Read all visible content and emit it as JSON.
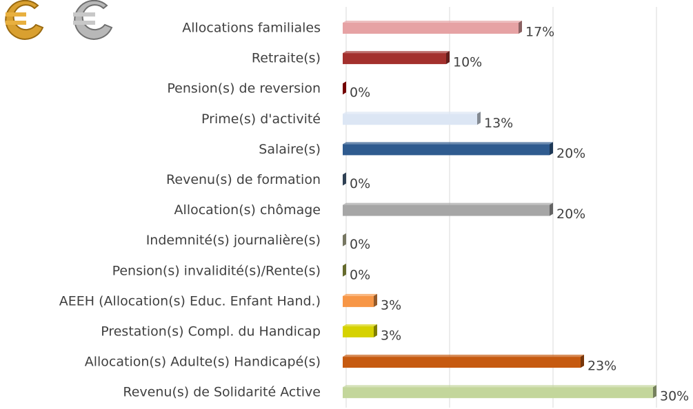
{
  "chart_data": {
    "type": "bar",
    "orientation": "horizontal",
    "categories": [
      "Allocations familiales",
      "Retraite(s)",
      "Pension(s) de reversion",
      "Prime(s) d'activité",
      "Salaire(s)",
      "Revenu(s) de formation",
      "Allocation(s) chômage",
      "Indemnité(s) journalière(s)",
      "Pension(s) invalidité(s)/Rente(s)",
      "AEEH (Allocation(s) Educ. Enfant Hand.)",
      "Prestation(s) Compl. du Handicap",
      "Allocation(s) Adulte(s) Handicapé(s)",
      "Revenu(s) de Solidarité Active"
    ],
    "values": [
      17,
      10,
      0,
      13,
      20,
      0,
      20,
      0,
      0,
      3,
      3,
      23,
      30
    ],
    "value_labels": [
      "17%",
      "10%",
      "0%",
      "13%",
      "20%",
      "0%",
      "20%",
      "0%",
      "0%",
      "3%",
      "3%",
      "23%",
      "30%"
    ],
    "colors": [
      "#e6a2a4",
      "#a3302d",
      "#c00000",
      "#dce6f4",
      "#2f5b8f",
      "#4e6b8c",
      "#a6a6a6",
      "#c4c4a2",
      "#a9b04a",
      "#f79646",
      "#d6d200",
      "#c65a10",
      "#c3d69b"
    ],
    "xlim": [
      0,
      30
    ],
    "xticks": [
      0,
      10,
      20,
      30
    ],
    "show_tick_labels": false,
    "grid": true
  }
}
